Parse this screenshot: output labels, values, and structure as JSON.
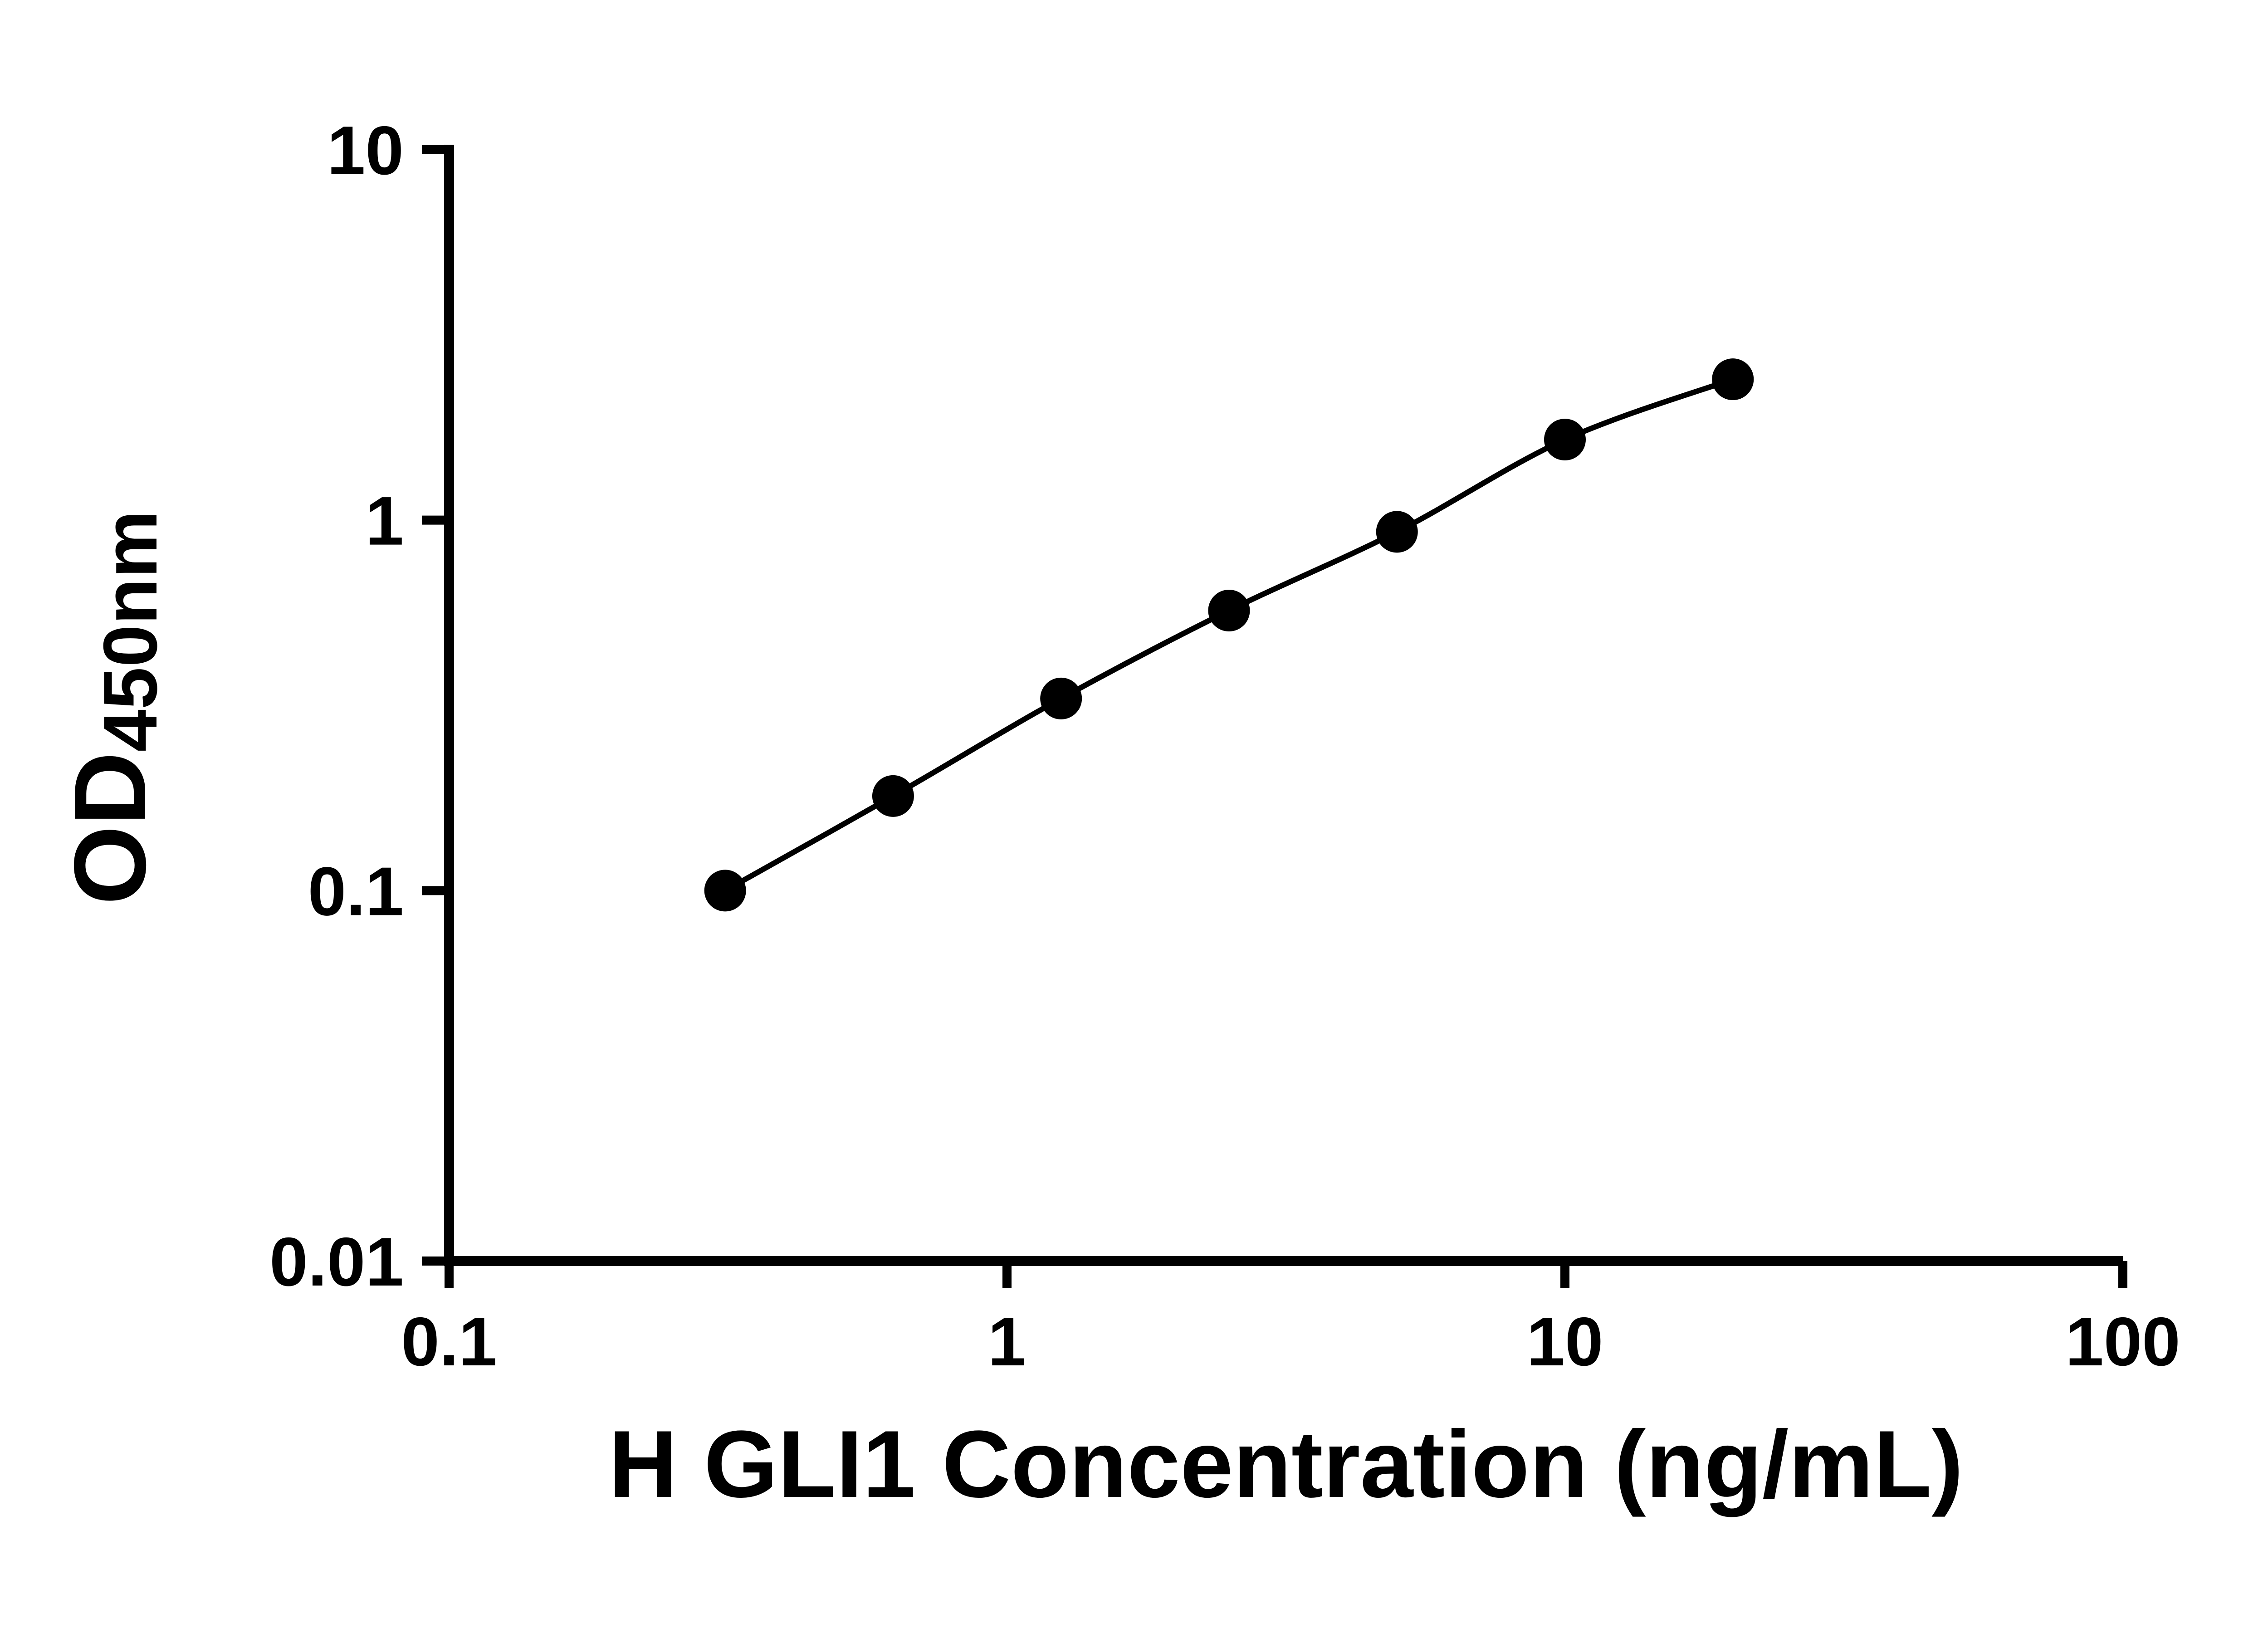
{
  "chart_data": {
    "type": "scatter",
    "title": "",
    "xlabel": "H GLI1 Concentration (ng/mL)",
    "ylabel": "OD450nm",
    "ylabel_main": "OD",
    "ylabel_sub": "450nm",
    "x_scale": "log10",
    "y_scale": "log10",
    "xlim": [
      0.1,
      100
    ],
    "ylim": [
      0.01,
      10
    ],
    "x_ticks": [
      0.1,
      1,
      10,
      100
    ],
    "x_tick_labels": [
      "0.1",
      "1",
      "10",
      "100"
    ],
    "y_ticks": [
      0.01,
      0.1,
      1,
      10
    ],
    "y_tick_labels": [
      "0.01",
      "0.1",
      "1",
      "10"
    ],
    "grid": false,
    "legend": "none",
    "series": [
      {
        "x": [
          0.3125,
          0.625,
          1.25,
          2.5,
          5,
          10,
          20
        ],
        "y": [
          0.1,
          0.18,
          0.33,
          0.57,
          0.93,
          1.65,
          2.4
        ],
        "marker": "circle",
        "marker_color": "#000000",
        "line_color": "#000000"
      }
    ]
  },
  "colors": {
    "background": "#ffffff",
    "axis": "#000000"
  }
}
